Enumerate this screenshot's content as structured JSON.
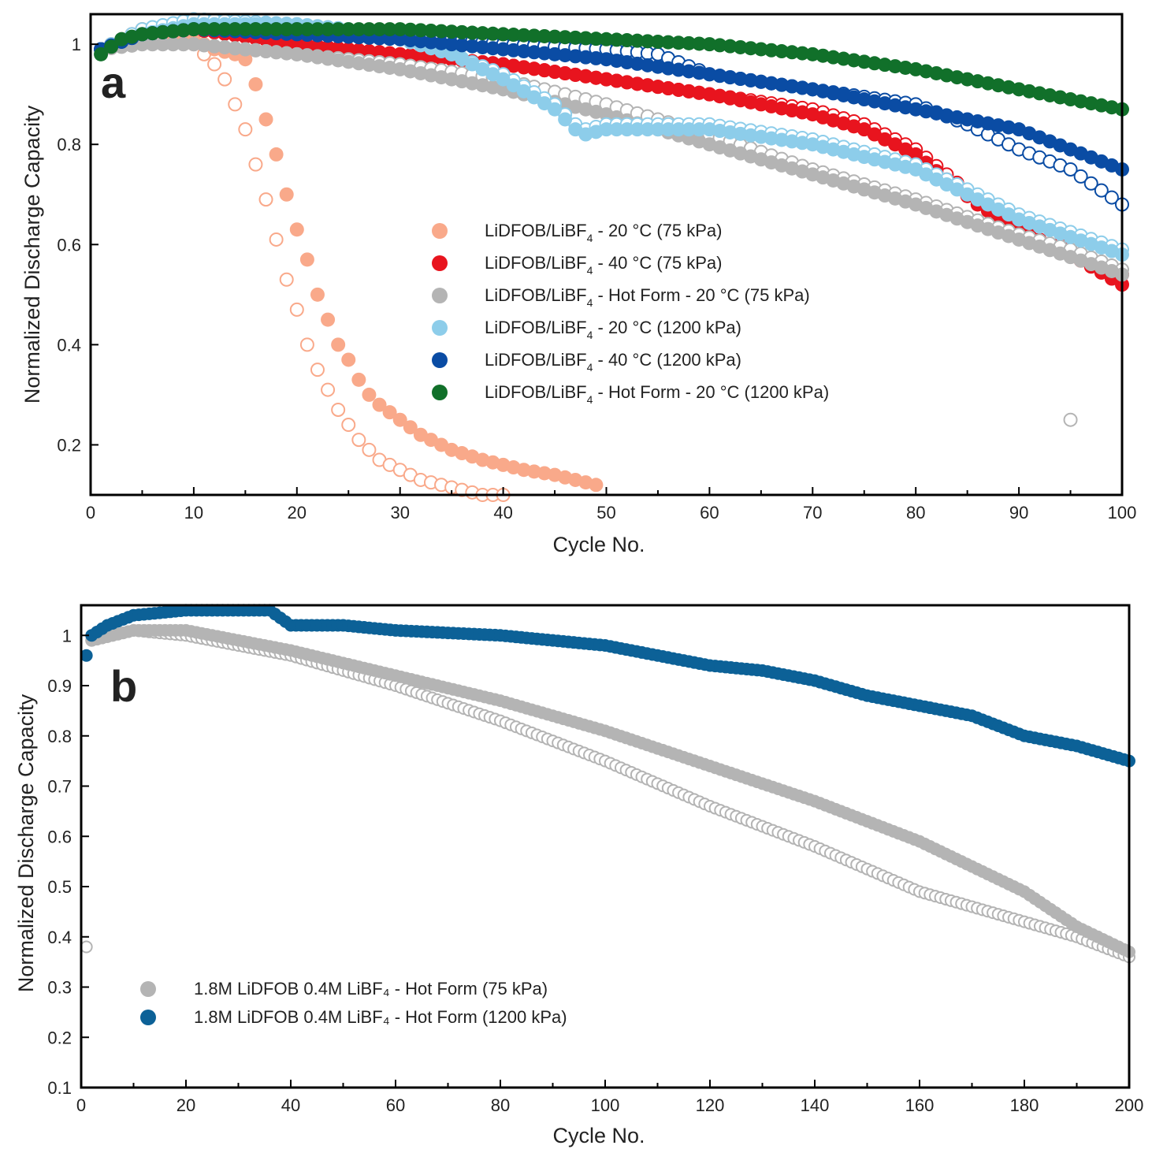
{
  "chart_data": [
    {
      "type": "scatter",
      "panel_label": "a",
      "xlabel": "Cycle No.",
      "ylabel": "Normalized Discharge Capacity",
      "xlim": [
        0,
        100
      ],
      "ylim": [
        0.1,
        1.06
      ],
      "xticks": [
        0,
        10,
        20,
        30,
        40,
        50,
        60,
        70,
        80,
        90,
        100
      ],
      "xtick_labels": [
        "0",
        "10",
        "20",
        "30",
        "40",
        "50",
        "60",
        "70",
        "80",
        "90",
        "100"
      ],
      "yticks": [
        0.2,
        0.4,
        0.6,
        0.8,
        1.0
      ],
      "ytick_labels": [
        "0.2",
        "0.4",
        "0.6",
        "0.8",
        "1"
      ],
      "legend_position": "center-right",
      "filled_marker_note": "filled circles and open circles (replicate cells) share each color",
      "series": [
        {
          "name": "LiDFOB/LiBF4 - 20 °C (75 kPa)",
          "label_pre": "LiDFOB/LiBF",
          "label_sub": "4",
          "label_post": " - 20 °C (75 kPa)",
          "color": "#F9A98A",
          "x": [
            1,
            5,
            10,
            12,
            14,
            15,
            16,
            17,
            18,
            19,
            20,
            21,
            22,
            23,
            24,
            25,
            26,
            27,
            28,
            30,
            32,
            35,
            38,
            40,
            42,
            45,
            49
          ],
          "y": [
            0.99,
            1.03,
            1.01,
            0.99,
            0.98,
            0.97,
            0.92,
            0.85,
            0.78,
            0.7,
            0.63,
            0.57,
            0.5,
            0.45,
            0.4,
            0.37,
            0.33,
            0.3,
            0.28,
            0.25,
            0.22,
            0.19,
            0.17,
            0.16,
            0.15,
            0.14,
            0.12
          ],
          "x_open": [
            1,
            5,
            9,
            10,
            11,
            12,
            13,
            14,
            15,
            16,
            17,
            18,
            19,
            20,
            21,
            22,
            23,
            24,
            25,
            26,
            27,
            28,
            30,
            32,
            34,
            36,
            38,
            40
          ],
          "y_open": [
            0.99,
            1.03,
            1.03,
            1.0,
            0.98,
            0.96,
            0.93,
            0.88,
            0.83,
            0.76,
            0.69,
            0.61,
            0.53,
            0.47,
            0.4,
            0.35,
            0.31,
            0.27,
            0.24,
            0.21,
            0.19,
            0.17,
            0.15,
            0.13,
            0.12,
            0.11,
            0.1,
            0.1
          ]
        },
        {
          "name": "LiDFOB/LiBF4 - 40 °C (75 kPa)",
          "label_pre": "LiDFOB/LiBF",
          "label_sub": "4",
          "label_post": " - 40 °C (75 kPa)",
          "color": "#E8141E",
          "x": [
            1,
            5,
            10,
            20,
            30,
            40,
            50,
            60,
            70,
            75,
            80,
            83,
            86,
            90,
            95,
            100
          ],
          "y": [
            0.99,
            1.02,
            1.03,
            1.0,
            0.98,
            0.96,
            0.93,
            0.9,
            0.86,
            0.83,
            0.78,
            0.73,
            0.68,
            0.63,
            0.58,
            0.52
          ],
          "x_open": [
            1,
            5,
            10,
            20,
            30,
            40,
            50,
            60,
            70,
            75,
            80,
            83,
            86,
            90,
            95,
            100
          ],
          "y_open": [
            0.99,
            1.02,
            1.03,
            1.0,
            0.98,
            0.96,
            0.93,
            0.9,
            0.87,
            0.84,
            0.79,
            0.74,
            0.69,
            0.64,
            0.59,
            0.54
          ]
        },
        {
          "name": "LiDFOB/LiBF4 - Hot Form - 20 °C (75 kPa)",
          "label_pre": "LiDFOB/LiBF",
          "label_sub": "4",
          "label_post": " - Hot Form - 20 °C (75 kPa)",
          "color": "#B4B4B4",
          "x": [
            1,
            5,
            10,
            20,
            30,
            40,
            50,
            60,
            70,
            80,
            90,
            100
          ],
          "y": [
            0.99,
            1.0,
            1.0,
            0.98,
            0.95,
            0.91,
            0.86,
            0.8,
            0.74,
            0.68,
            0.61,
            0.54
          ],
          "x_open": [
            1,
            5,
            10,
            20,
            30,
            40,
            50,
            60,
            70,
            80,
            90,
            95,
            100
          ],
          "y_open": [
            0.99,
            1.0,
            1.0,
            0.98,
            0.96,
            0.93,
            0.88,
            0.82,
            0.75,
            0.69,
            0.62,
            0.59,
            0.55
          ],
          "x_outlier": [
            95
          ],
          "y_outlier": [
            0.25
          ]
        },
        {
          "name": "LiDFOB/LiBF4 - 20 °C (1200 kPa)",
          "label_pre": "LiDFOB/LiBF",
          "label_sub": "4",
          "label_post": " - 20 °C (1200 kPa)",
          "color": "#8DCDEA",
          "x": [
            1,
            5,
            10,
            20,
            30,
            35,
            40,
            45,
            47,
            48,
            50,
            55,
            60,
            70,
            80,
            85,
            90,
            100
          ],
          "y": [
            0.99,
            1.02,
            1.04,
            1.04,
            1.01,
            0.98,
            0.93,
            0.87,
            0.83,
            0.82,
            0.83,
            0.83,
            0.83,
            0.8,
            0.75,
            0.7,
            0.65,
            0.58
          ],
          "x_open": [
            1,
            5,
            10,
            20,
            30,
            35,
            40,
            45,
            47,
            48,
            50,
            55,
            60,
            70,
            80,
            85,
            90,
            100
          ],
          "y_open": [
            0.99,
            1.03,
            1.05,
            1.04,
            1.02,
            0.98,
            0.94,
            0.88,
            0.84,
            0.83,
            0.84,
            0.84,
            0.84,
            0.81,
            0.76,
            0.71,
            0.66,
            0.59
          ]
        },
        {
          "name": "LiDFOB/LiBF4 - 40 °C (1200 kPa)",
          "label_pre": "LiDFOB/LiBF",
          "label_sub": "4",
          "label_post": " - 40 °C (1200 kPa)",
          "color": "#0A4CA4",
          "x": [
            1,
            5,
            10,
            20,
            30,
            40,
            50,
            60,
            70,
            80,
            90,
            95,
            100
          ],
          "y": [
            0.99,
            1.02,
            1.03,
            1.02,
            1.01,
            0.99,
            0.97,
            0.94,
            0.91,
            0.87,
            0.83,
            0.79,
            0.75
          ],
          "x_open": [
            1,
            5,
            10,
            20,
            30,
            40,
            50,
            55,
            60,
            70,
            80,
            85,
            90,
            95,
            100
          ],
          "y_open": [
            0.99,
            1.02,
            1.03,
            1.03,
            1.02,
            1.0,
            0.99,
            0.98,
            0.94,
            0.91,
            0.88,
            0.84,
            0.79,
            0.75,
            0.68
          ]
        },
        {
          "name": "LiDFOB/LiBF4 - Hot Form - 20 °C (1200 kPa)",
          "label_pre": "LiDFOB/LiBF",
          "label_sub": "4",
          "label_post": " - Hot Form - 20 °C (1200 kPa)",
          "color": "#11702A",
          "x": [
            1,
            3,
            5,
            10,
            20,
            30,
            40,
            50,
            60,
            70,
            80,
            90,
            100
          ],
          "y": [
            0.98,
            1.01,
            1.02,
            1.03,
            1.03,
            1.03,
            1.02,
            1.01,
            1.0,
            0.98,
            0.95,
            0.91,
            0.87
          ]
        }
      ]
    },
    {
      "type": "scatter",
      "panel_label": "b",
      "xlabel": "Cycle No.",
      "ylabel": "Normalized Discharge Capacity",
      "xlim": [
        0,
        200
      ],
      "ylim": [
        0.1,
        1.06
      ],
      "xticks": [
        0,
        20,
        40,
        60,
        80,
        100,
        120,
        140,
        160,
        180,
        200
      ],
      "xtick_labels": [
        "0",
        "20",
        "40",
        "60",
        "80",
        "100",
        "120",
        "140",
        "160",
        "180",
        "200"
      ],
      "yticks": [
        0.1,
        0.2,
        0.3,
        0.4,
        0.5,
        0.6,
        0.7,
        0.8,
        0.9,
        1.0
      ],
      "ytick_labels": [
        "0.1",
        "0.2",
        "0.3",
        "0.4",
        "0.5",
        "0.6",
        "0.7",
        "0.8",
        "0.9",
        "1"
      ],
      "legend_position": "bottom-left",
      "series": [
        {
          "name": "1.8M LiDFOB 0.4M LiBF₄ - Hot Form  (75 kPa)",
          "label": "1.8M LiDFOB 0.4M LiBF₄ - Hot Form  (75 kPa)",
          "color": "#B4B4B4",
          "x": [
            2,
            10,
            20,
            40,
            60,
            80,
            100,
            120,
            140,
            160,
            180,
            190,
            200
          ],
          "y": [
            0.99,
            1.01,
            1.01,
            0.97,
            0.92,
            0.87,
            0.81,
            0.74,
            0.67,
            0.59,
            0.49,
            0.42,
            0.37
          ],
          "x_open": [
            2,
            10,
            20,
            40,
            60,
            80,
            100,
            120,
            140,
            160,
            180,
            190,
            200
          ],
          "y_open": [
            0.99,
            1.01,
            1.0,
            0.96,
            0.9,
            0.83,
            0.75,
            0.66,
            0.58,
            0.49,
            0.43,
            0.4,
            0.36
          ],
          "x_outlier": [
            1
          ],
          "y_outlier": [
            0.38
          ]
        },
        {
          "name": "1.8M LiDFOB 0.4M LiBF₄ - Hot Form  (1200 kPa)",
          "label": "1.8M LiDFOB 0.4M LiBF₄ - Hot Form  (1200 kPa)",
          "color": "#0C6197",
          "x": [
            1,
            2,
            5,
            10,
            20,
            30,
            36,
            40,
            45,
            50,
            60,
            80,
            90,
            100,
            110,
            120,
            130,
            140,
            150,
            160,
            170,
            180,
            190,
            200
          ],
          "y": [
            0.96,
            1.0,
            1.02,
            1.04,
            1.05,
            1.05,
            1.05,
            1.02,
            1.02,
            1.02,
            1.01,
            1.0,
            0.99,
            0.98,
            0.96,
            0.94,
            0.93,
            0.91,
            0.88,
            0.86,
            0.84,
            0.8,
            0.78,
            0.75
          ]
        }
      ]
    }
  ]
}
